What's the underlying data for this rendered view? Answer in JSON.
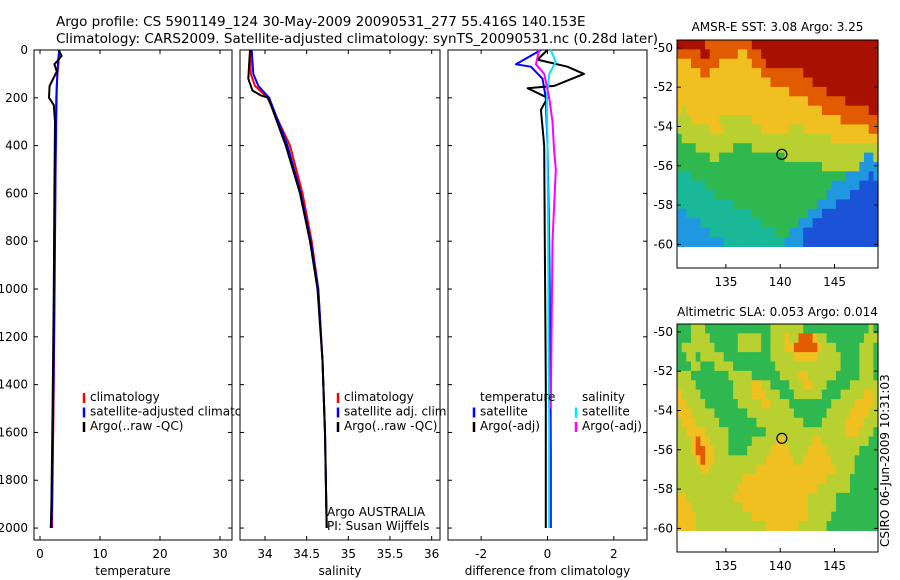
{
  "header": {
    "line1": "Argo profile: CS 5901149_124 30-May-2009 20090531_277 55.416S 140.153E",
    "line2": "Climatology: CARS2009. Satellite-adjusted climatology: synTS_20090531.nc (0.28d later)"
  },
  "credit": "CSIRO 06-Jun-2009 10:31:03",
  "colors": {
    "climatology": "#ff0000",
    "satellite": "#0000ff",
    "argo": "#000000",
    "sal_satellite": "#00e5ff",
    "sal_argo": "#ff00ff"
  },
  "chart_data": [
    {
      "type": "line",
      "panel": "temperature",
      "xlabel": "temperature",
      "xlim": [
        -1,
        32
      ],
      "xticks": [
        0,
        10,
        20,
        30
      ],
      "ylim": [
        0,
        2050
      ],
      "yticks": [
        0,
        200,
        400,
        600,
        800,
        1000,
        1200,
        1400,
        1600,
        1800,
        2000
      ],
      "y_reversed": true,
      "legend": [
        {
          "label": "climatology",
          "color": "#ff0000"
        },
        {
          "label": "satellite-adjusted climatology",
          "color": "#0000ff"
        },
        {
          "label": "Argo(..raw -QC)",
          "color": "#000000"
        }
      ],
      "series": [
        {
          "name": "climatology",
          "color": "#ff0000",
          "x": [
            3.2,
            3.1,
            2.9,
            2.7,
            2.6,
            2.5,
            2.4,
            2.3,
            2.1,
            2.0
          ],
          "y": [
            0,
            50,
            100,
            200,
            400,
            700,
            1000,
            1400,
            1800,
            2000
          ]
        },
        {
          "name": "satellite-adjusted climatology",
          "color": "#0000ff",
          "x": [
            3.2,
            3.0,
            2.9,
            2.8,
            2.7,
            2.6,
            2.5,
            2.4,
            2.2,
            2.0,
            1.9
          ],
          "y": [
            0,
            50,
            100,
            150,
            300,
            500,
            800,
            1100,
            1500,
            1900,
            2000
          ]
        },
        {
          "name": "Argo(..raw -QC)",
          "color": "#000000",
          "x": [
            3.1,
            3.6,
            2.4,
            2.8,
            1.6,
            1.5,
            2.3,
            2.5,
            2.4,
            2.3,
            2.1,
            1.9,
            1.8
          ],
          "y": [
            0,
            25,
            60,
            90,
            150,
            200,
            230,
            300,
            600,
            1000,
            1500,
            1900,
            2000
          ]
        }
      ]
    },
    {
      "type": "line",
      "panel": "salinity",
      "xlabel": "salinity",
      "xlim": [
        33.7,
        36.1
      ],
      "xticks": [
        34,
        34.5,
        35,
        35.5,
        36
      ],
      "ylim": [
        0,
        2050
      ],
      "y_reversed": true,
      "legend": [
        {
          "label": "climatology",
          "color": "#ff0000"
        },
        {
          "label": "satellite adj. clim.",
          "color": "#0000ff"
        },
        {
          "label": "Argo(..raw -QC)",
          "color": "#000000"
        }
      ],
      "annotations": [
        "Argo AUSTRALIA",
        "PI: Susan Wijffels"
      ],
      "series": [
        {
          "name": "climatology",
          "color": "#ff0000",
          "x": [
            33.82,
            33.83,
            33.88,
            34.03,
            34.3,
            34.45,
            34.56,
            34.64,
            34.69,
            34.72,
            34.74
          ],
          "y": [
            0,
            100,
            150,
            200,
            400,
            600,
            800,
            1000,
            1300,
            1600,
            2000
          ]
        },
        {
          "name": "satellite adj. clim.",
          "color": "#0000ff",
          "x": [
            33.84,
            33.86,
            33.92,
            34.05,
            34.27,
            34.43,
            34.55,
            34.64,
            34.69,
            34.72,
            34.74
          ],
          "y": [
            0,
            100,
            150,
            200,
            400,
            600,
            800,
            1000,
            1300,
            1600,
            2000
          ]
        },
        {
          "name": "Argo(..raw -QC)",
          "color": "#000000",
          "x": [
            33.82,
            33.8,
            33.85,
            33.95,
            34.04,
            34.25,
            34.42,
            34.54,
            34.63,
            34.69,
            34.72,
            34.74
          ],
          "y": [
            0,
            120,
            170,
            190,
            200,
            400,
            600,
            800,
            1000,
            1300,
            1600,
            2000
          ]
        }
      ]
    },
    {
      "type": "line",
      "panel": "difference",
      "xlabel": "difference from climatology",
      "xlim": [
        -3.0,
        3.0
      ],
      "xticks": [
        -2,
        0,
        2
      ],
      "ylim": [
        0,
        2050
      ],
      "y_reversed": true,
      "legend": [
        {
          "label": "temperature",
          "color": "",
          "heading": true
        },
        {
          "label": "satellite",
          "color": "#0000ff"
        },
        {
          "label": "Argo(-adj)",
          "color": "#000000"
        },
        {
          "label": "salinity",
          "color": "",
          "heading": true
        },
        {
          "label": "satellite",
          "color": "#00e5ff"
        },
        {
          "label": "Argo(-adj)",
          "color": "#ff00ff"
        }
      ],
      "series": [
        {
          "name": "temperature satellite",
          "color": "#0000ff",
          "x": [
            -0.2,
            -0.95,
            -0.5,
            -0.15,
            -0.05,
            0.0,
            0.05,
            0.08,
            0.1,
            0.1
          ],
          "y": [
            0,
            60,
            70,
            120,
            200,
            400,
            800,
            1200,
            1700,
            2000
          ]
        },
        {
          "name": "temperature Argo(-adj)",
          "color": "#000000",
          "x": [
            0.0,
            -0.3,
            0.6,
            1.1,
            0.2,
            -0.6,
            0.0,
            -0.2,
            -0.1,
            -0.08,
            -0.05,
            -0.05
          ],
          "y": [
            0,
            40,
            70,
            100,
            150,
            160,
            200,
            250,
            400,
            800,
            1400,
            2000
          ]
        },
        {
          "name": "salinity satellite",
          "color": "#00e5ff",
          "x": [
            0.1,
            0.25,
            0.05,
            -0.02,
            0.0,
            0.02,
            0.03,
            0.05,
            0.05
          ],
          "y": [
            0,
            50,
            100,
            200,
            400,
            800,
            1200,
            1600,
            2000
          ]
        },
        {
          "name": "salinity Argo(-adj)",
          "color": "#ff00ff",
          "x": [
            -0.25,
            -0.35,
            -0.1,
            0.05,
            0.15,
            0.2,
            0.25,
            0.15,
            0.12,
            0.1
          ],
          "y": [
            0,
            60,
            100,
            200,
            300,
            420,
            500,
            800,
            1200,
            1500
          ]
        }
      ]
    },
    {
      "type": "heatmap",
      "panel": "sst_map",
      "title": "AMSR-E SST: 3.08 Argo: 3.25",
      "xlim": [
        130.5,
        149
      ],
      "ylim": [
        -61.2,
        -49.6
      ],
      "xticks": [
        135,
        140,
        145
      ],
      "yticks": [
        -50,
        -52,
        -54,
        -56,
        -58,
        -60
      ],
      "data_rows_top_to_bottom": [
        "rrrrrroooooooooorrrrrrrrrrrrrrrrrrrrrrrrrrr",
        "ooooorrooooooyyooorrrrrrrrrrrrrrrrrrrrrrrrr",
        "yyyooooooyyyyyyyooorrrrrrrrrrrrrrrrrrrrrrrr",
        "yyyyyooyyyyyyyyyyyooooooooorrrrrrrrrrrrrrrr",
        "yyyyyyyyyyyyyyyyyyyyooooooooorrrrrrrrrrrrrr",
        "yyyyyyyyyyyyyyyyyyyyyyyyoooooooorrrrrrrrrrr",
        "yyyyyyyyyyyyyyyyyyyyyyyyyyyyoooooooorrrrrrr",
        "ylyyyyyyyyyyyyyyyyyyyyyyyyyyyyyoooooooooorr",
        "lllyyyyyylllllllyyyyyyyyyyyyyyyyyyyoooooooo",
        "lllllllyyyllllllllyyyyyylllyyyyyyyyyyyyyyoo",
        "gllllllllllllllllllllllllllllllllyyyyyyyyyy",
        "ggggllllllllgggglllllllllllllllllllllllllll",
        "gggggggllgggggggggggggglllllllllllllllllccl",
        "gggggggggggggggggggggggggggggggllllllllcccc",
        "tttgggggggggggggggggggggggggggggggggcccccbc",
        "ttttttgggggggggggggggggggggggggggccccccbbbb",
        "ttttttttggggggggggggggggggggggggcccccbbbbbb",
        "ttttttttttttggggggggggggggggggccccbbbbbbbbb",
        "ccttttttttttttttggggggggggggcccbbbbbbbbbbbb",
        "ccccctttttttttttttggggggggcccbbbbbbbbbbbbbb",
        "cccccccttttttttttttttgggcccbbbbbbbbbbbbbbbb",
        "cccccccccctttttttttttttccccbbbbbbbbbbbbbbbb"
      ],
      "colors": {
        "r": "#a81000",
        "o": "#e25b00",
        "y": "#f0c020",
        "l": "#b8d030",
        "g": "#30b850",
        "t": "#18b898",
        "c": "#2098e0",
        "b": "#1a52d8"
      },
      "argo_marker": {
        "x": 140.153,
        "y": -55.416
      }
    },
    {
      "type": "heatmap",
      "panel": "sla_map",
      "title": "Altimetric SLA: 0.053 Argo: 0.014",
      "xlim": [
        130.5,
        149
      ],
      "ylim": [
        -61.2,
        -49.6
      ],
      "xticks": [
        135,
        140,
        145
      ],
      "yticks": [
        -50,
        -52,
        -54,
        -56,
        -58,
        -60
      ],
      "data_rows_top_to_bottom": [
        "ggglllgggggggggggggglllllllgggggggggggggglg",
        "gggllllgggggglllllgglllylloooyllgggggggglll",
        "glllllllggggglllllgglllyyoooooylllggggglllg",
        "ggllglllllgggggggggglllllyyyyylllllgggglllg",
        "gggllgggllllgggggggggllllllllllllllgggglllg",
        "lllgggggggglllllggggggllllyyllllllggggglllg",
        "llllggggggggllllyyllgggglllyylllgggggllllll",
        "yllllgggggggllllyyylllgggllllllgggglllllyyl",
        "yyllllggggggglllllyyllllggggggggglllllyyyyl",
        "yyylllllgggggggllllllllllggggggglllllyyyyll",
        "lyyylllllggggggggllllllllllgggglllllyyyylll",
        "llyyyylllllgggggggglllllllllllllllllyyylllg",
        "lllyoyyllllggggglllllyyllllllyyllllllllllgg",
        "lllyooyylllgggglllllyyyyllllyyyylllllllgggg",
        "llllyoyylllllllllllyyyyyyllyyyyyylllllggggg",
        "lllllyyllllllllllyyyyyyyyyyyyyyyyyllllggggg",
        "llllllllllllllyyyyyyyyyyyyyyyyyylllllgggggg",
        "lllllllllllllyyyyyyyyyyyyyyyyylllllllgggggg",
        "yyllllllllllyyyyyyyyyyyyyyyyllllllggggggggg",
        "yyylllllllllllyyyyyyyyyyyyyyllllllggggggggg",
        "yyyyllllllllllllyyyyyyyyyyyylllllgggggggggg",
        "yyyylllllllllllllllyyyyyyyllllllggggggggggg"
      ],
      "colors": {
        "r": "#a81000",
        "o": "#e25b00",
        "y": "#f0c020",
        "l": "#b8d030",
        "g": "#30b850",
        "t": "#18b898",
        "c": "#2098e0",
        "b": "#1a52d8"
      },
      "argo_marker": {
        "x": 140.153,
        "y": -55.416
      }
    }
  ]
}
